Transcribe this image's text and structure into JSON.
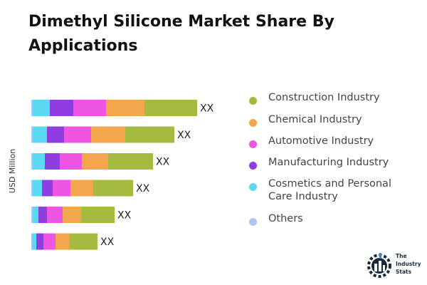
{
  "title": "Dimethyl Silicone Market Share By Applications",
  "colors": {
    "Construction Industry": "#a5bb3f",
    "Chemical Industry": "#f4a64c",
    "Automotive Industry": "#ee55e2",
    "Manufacturing Industry": "#8e3ee0",
    "Cosmetics and Personal Care Industry": "#5bd8f2",
    "Others": "#b3c4f2"
  },
  "legend": [
    "Construction Industry",
    "Chemical Industry",
    "Automotive Industry",
    "Manufacturing Industry",
    "Cosmetics and Personal Care Industry",
    "Others"
  ],
  "logo": {
    "icon": "gear-factory-icon",
    "line1": "The",
    "line2": "Industry",
    "line3": "Stats"
  },
  "chart_data": {
    "type": "bar",
    "orientation": "horizontal",
    "stacked": true,
    "ylabel": "USD Million",
    "categories": [
      "",
      "",
      "",
      "",
      "",
      ""
    ],
    "data_labels": [
      "XX",
      "XX",
      "XX",
      "XX",
      "XX",
      "XX"
    ],
    "series": [
      {
        "name": "Others",
        "values": [
          2,
          2,
          2,
          2,
          2,
          1
        ]
      },
      {
        "name": "Cosmetics and Personal Care Industry",
        "values": [
          24,
          20,
          17,
          13,
          8,
          6
        ]
      },
      {
        "name": "Manufacturing Industry",
        "values": [
          33,
          24,
          21,
          15,
          12,
          10
        ]
      },
      {
        "name": "Automotive Industry",
        "values": [
          46,
          38,
          31,
          25,
          22,
          17
        ]
      },
      {
        "name": "Chemical Industry",
        "values": [
          54,
          48,
          37,
          32,
          26,
          19
        ]
      },
      {
        "name": "Construction Industry",
        "values": [
          74,
          69,
          63,
          56,
          47,
          40
        ]
      }
    ],
    "xlim": [
      0,
      240
    ],
    "grid": false,
    "legend_position": "right"
  }
}
